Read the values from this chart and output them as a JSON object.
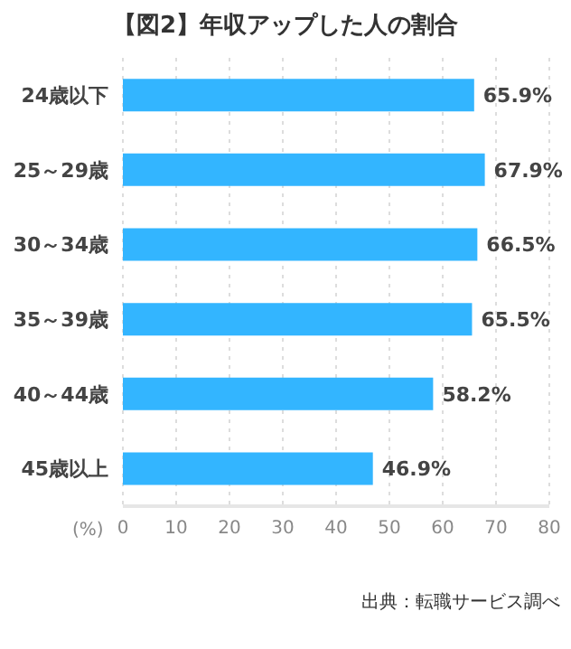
{
  "chart_data": {
    "type": "bar",
    "orientation": "horizontal",
    "title": "【図2】年収アップした人の割合",
    "xlabel": "(%)",
    "categories": [
      "24歳以下",
      "25～29歳",
      "30～34歳",
      "35～39歳",
      "40～44歳",
      "45歳以上"
    ],
    "values": [
      65.9,
      67.9,
      66.5,
      65.5,
      58.2,
      46.9
    ],
    "value_labels": [
      "65.9%",
      "67.9%",
      "66.5%",
      "65.5%",
      "58.2%",
      "46.9%"
    ],
    "color": "#33b5ff",
    "xlim": [
      0,
      80
    ],
    "xticks": [
      0,
      10,
      20,
      30,
      40,
      50,
      60,
      70,
      80
    ],
    "grid": "x",
    "annotations": [
      "出典：転職サービス調べ"
    ]
  }
}
